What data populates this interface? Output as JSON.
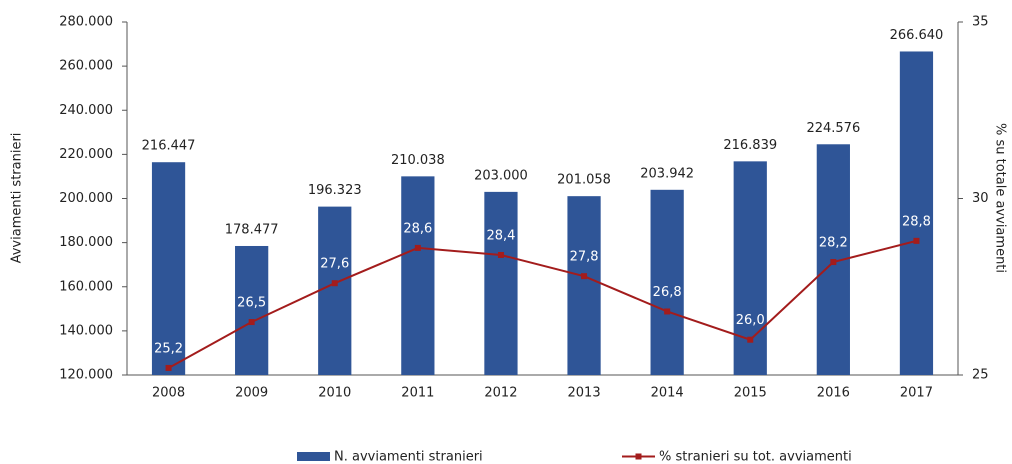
{
  "chart_data": {
    "type": "bar",
    "y_label": "Avviamenti stranieri",
    "y2_label": "% su totale avviamenti",
    "categories": [
      "2008",
      "2009",
      "2010",
      "2011",
      "2012",
      "2013",
      "2014",
      "2015",
      "2016",
      "2017"
    ],
    "series": [
      {
        "name": "N. avviamenti stranieri",
        "type": "bar",
        "color": "#2f5597",
        "values": [
          216447,
          178477,
          196323,
          210038,
          203000,
          201058,
          203942,
          216839,
          224576,
          266640
        ],
        "value_labels": [
          "216.447",
          "178.477",
          "196.323",
          "210.038",
          "203.000",
          "201.058",
          "203.942",
          "216.839",
          "224.576",
          "266.640"
        ]
      },
      {
        "name": "% stranieri su tot. avviamenti",
        "type": "line",
        "axis": "y2",
        "color": "#a31c1c",
        "values": [
          25.2,
          26.5,
          27.6,
          28.6,
          28.4,
          27.8,
          26.8,
          26.0,
          28.2,
          28.8
        ],
        "value_labels": [
          "25,2",
          "26,5",
          "27,6",
          "28,6",
          "28,4",
          "27,8",
          "26,8",
          "26,0",
          "28,2",
          "28,8"
        ]
      }
    ],
    "ylim": [
      120000,
      280000
    ],
    "yticks": [
      {
        "value": 120000,
        "label": "120.000"
      },
      {
        "value": 140000,
        "label": "140.000"
      },
      {
        "value": 160000,
        "label": "160.000"
      },
      {
        "value": 180000,
        "label": "180.000"
      },
      {
        "value": 200000,
        "label": "200.000"
      },
      {
        "value": 220000,
        "label": "220.000"
      },
      {
        "value": 240000,
        "label": "240.000"
      },
      {
        "value": 260000,
        "label": "260.000"
      },
      {
        "value": 280000,
        "label": "280.000"
      }
    ],
    "y2lim": [
      25,
      35
    ],
    "y2ticks": [
      25,
      30,
      35
    ],
    "legend": "bottom"
  }
}
